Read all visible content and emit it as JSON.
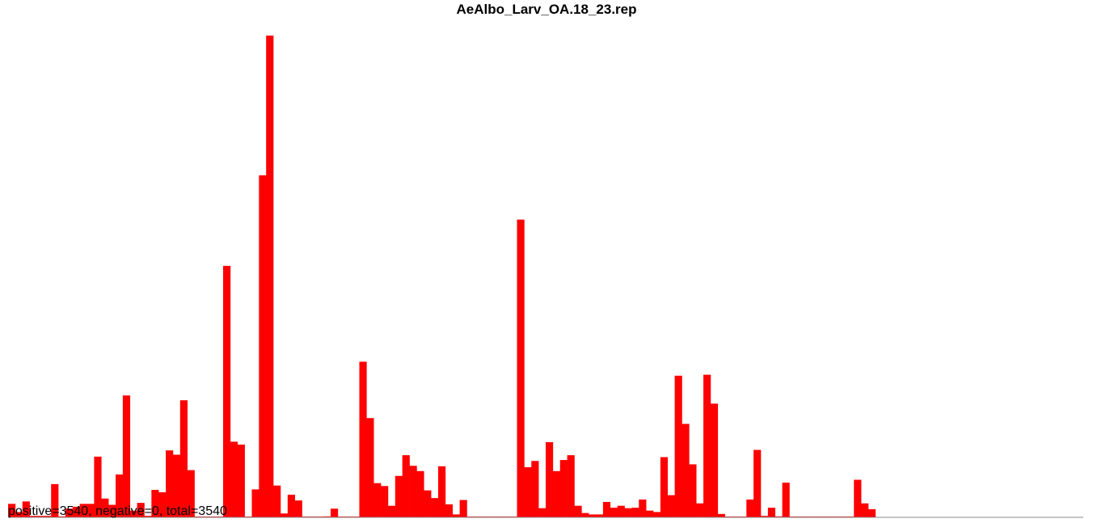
{
  "chart_data": {
    "type": "bar",
    "title": "AeAlbo_Larv_OA.18_23.rep",
    "summary": "positive=3540, negative=0, total=3540",
    "xlabel": "",
    "ylabel": "",
    "ylim": [
      0,
      100
    ],
    "grid": false,
    "series_color": "#ff0000",
    "negative_color": "#0000ff",
    "baseline_color": "#888888",
    "bins": 150,
    "values": [
      2.8,
      1.1,
      3.3,
      0.3,
      0.3,
      0.3,
      6.9,
      0.2,
      1.8,
      2.2,
      2.8,
      2.8,
      12.6,
      3.9,
      2.6,
      8.9,
      25.3,
      1.4,
      3.0,
      0.3,
      5.7,
      5.2,
      13.9,
      13.0,
      24.3,
      9.8,
      0.1,
      0.1,
      0.1,
      0.1,
      52.2,
      15.7,
      15.1,
      0.1,
      5.8,
      71.0,
      100.0,
      6.6,
      0.8,
      4.7,
      3.5,
      0.1,
      0.1,
      0.1,
      0.2,
      1.8,
      0.1,
      0.1,
      0.1,
      32.3,
      20.6,
      7.1,
      6.5,
      2.4,
      8.6,
      12.9,
      10.7,
      9.6,
      5.6,
      4.0,
      10.6,
      2.7,
      0.6,
      3.6,
      0.1,
      0.1,
      0.1,
      0.1,
      0.1,
      0.1,
      0.1,
      61.8,
      10.4,
      11.7,
      1.9,
      15.6,
      9.6,
      11.9,
      12.9,
      2.4,
      0.9,
      0.6,
      0.6,
      3.2,
      2.0,
      2.4,
      1.9,
      2.0,
      3.7,
      1.4,
      1.1,
      12.5,
      4.6,
      29.4,
      19.4,
      11.0,
      2.9,
      29.6,
      23.6,
      0.7,
      0.1,
      0.1,
      0.1,
      3.7,
      14.0,
      0.3,
      2.0,
      0.2,
      7.2,
      0.1,
      0.1,
      0.1,
      0.1,
      0.1,
      0.1,
      0.1,
      0.1,
      0.1,
      7.8,
      2.9,
      1.7,
      0.0,
      0.0,
      0.0,
      0.0,
      0.0,
      0.0,
      0.0,
      0.0,
      0.0,
      0.0,
      0.0,
      0.0,
      0.0,
      0.0,
      0.0,
      0.0,
      0.0,
      0.0,
      0.0,
      0.0,
      0.0,
      0.0,
      0.0,
      0.0,
      0.0,
      0.0,
      0.0,
      0.0,
      0.0
    ]
  }
}
